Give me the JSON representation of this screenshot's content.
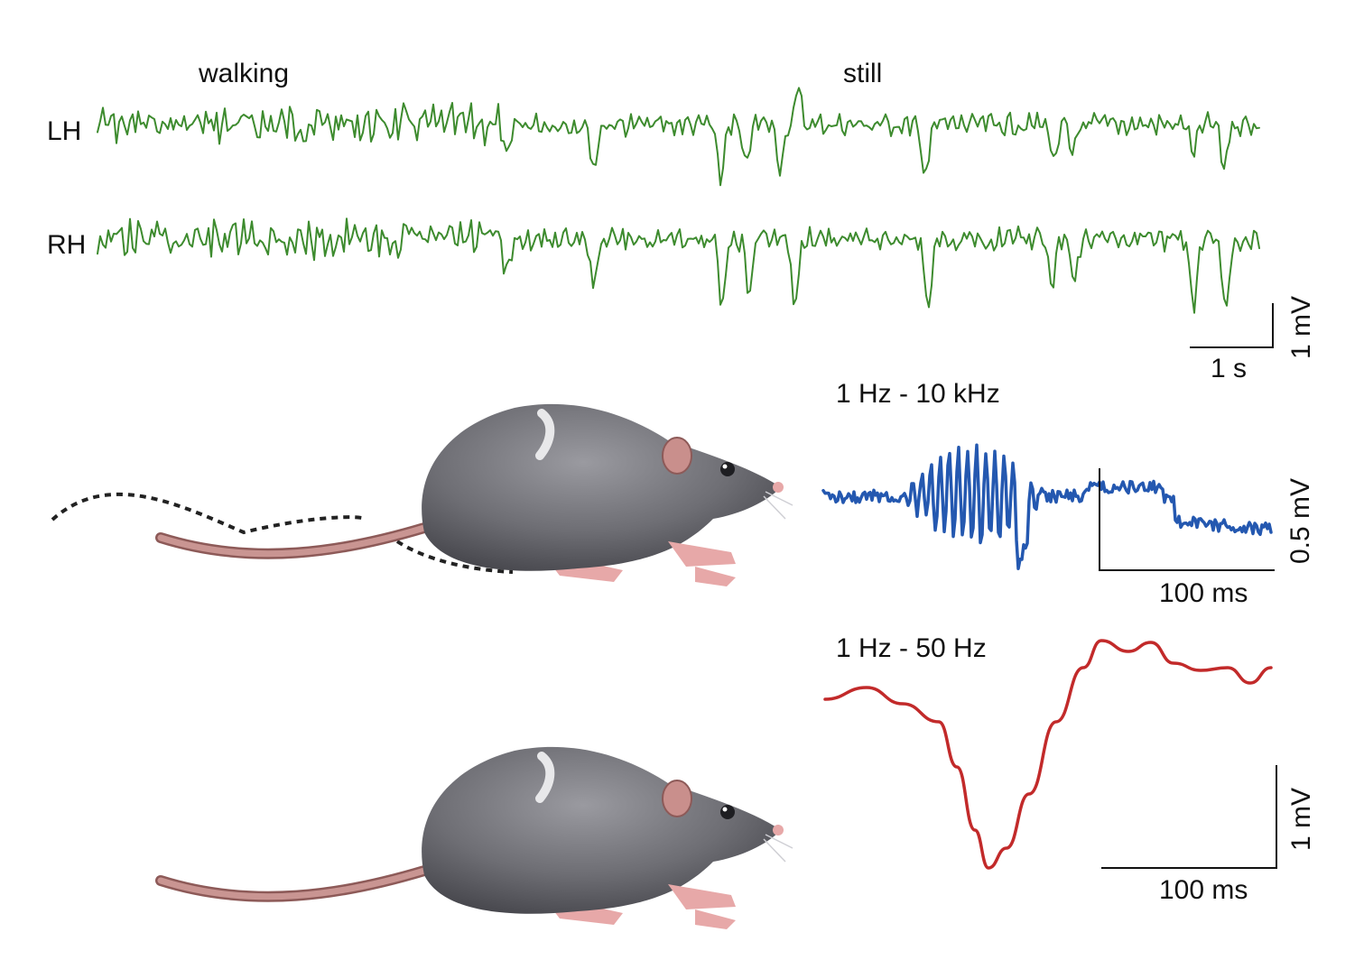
{
  "eeg": {
    "state_labels": {
      "walking": "walking",
      "still": "still"
    },
    "channels": [
      {
        "name": "LH",
        "color": "#3d8b2e"
      },
      {
        "name": "RH",
        "color": "#3d8b2e"
      }
    ],
    "scale_bar": {
      "voltage": "1 mV",
      "time": "1 s"
    }
  },
  "filter_panels": [
    {
      "band": "1 Hz - 10 kHz",
      "color": "#2458b0",
      "scale_voltage": "0.5 mV",
      "scale_time": "100 ms"
    },
    {
      "band": "1 Hz - 50 Hz",
      "color": "#c22a2a",
      "scale_voltage": "1 mV",
      "scale_time": "100 ms"
    }
  ],
  "illustrations": {
    "rat_top": {
      "body_color": "#6e6e74",
      "tail_color": "#b97a78",
      "tail_motion": "dashed"
    },
    "rat_bottom": {
      "body_color": "#6e6e74",
      "tail_color": "#b97a78"
    }
  }
}
